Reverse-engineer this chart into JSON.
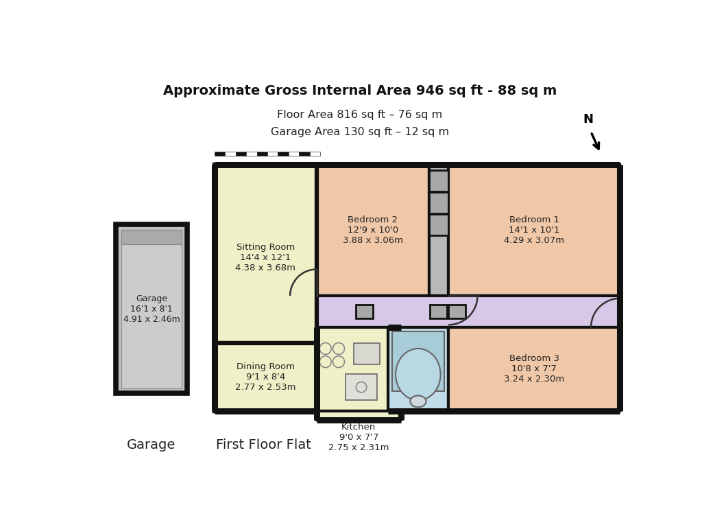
{
  "title_bold": "Approximate Gross Internal Area 946 sq ft - 88 sq m",
  "title_line2": "Floor Area 816 sq ft – 76 sq m",
  "title_line3": "Garage Area 130 sq ft – 12 sq m",
  "label_garage": "Garage",
  "label_flat": "First Floor Flat",
  "bg_color": "#ffffff",
  "wall_color": "#111111",
  "room_color_cream": "#f0f0c8",
  "room_color_peach": "#f0c8a8",
  "room_color_purple": "#d8c8e8",
  "room_color_blue": "#c0dce8",
  "room_color_gray": "#c0c0c0"
}
